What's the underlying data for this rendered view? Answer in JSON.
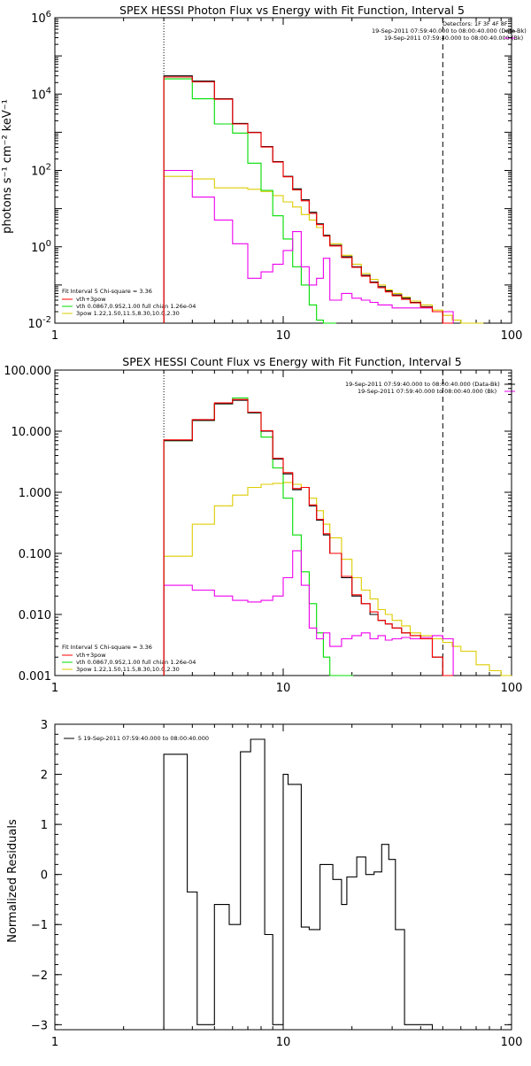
{
  "chart_data": [
    {
      "type": "line",
      "title": "SPEX HESSI Photon Flux vs Energy with Fit Function, Interval 5",
      "ylabel": "photons s⁻¹ cm⁻² keV⁻¹",
      "xlabel": "",
      "x_scale": "log",
      "y_scale": "log",
      "xlim": [
        1,
        100
      ],
      "ylim": [
        0.01,
        1000000
      ],
      "x_ticks": [
        "1",
        "10",
        "100"
      ],
      "y_ticks": [
        {
          "base": "10",
          "exp": "-2"
        },
        {
          "base": "10",
          "exp": "0"
        },
        {
          "base": "10",
          "exp": "2"
        },
        {
          "base": "10",
          "exp": "4"
        },
        {
          "base": "10",
          "exp": "6"
        }
      ],
      "vlines": [
        {
          "x": 3,
          "style": "dotted"
        },
        {
          "x": 50,
          "style": "dashed"
        }
      ],
      "legend_topright": [
        "Detectors: 1F 3F 4F 8F",
        "19-Sep-2011 07:59:40.000 to 08:00:40.000 (Data-Bk)",
        "19-Sep-2011 07:59:40.000 to 08:00:40.000 (Bk)"
      ],
      "legend_bottomleft": [
        "Fit Interval 5   Chi-square = 3.36",
        "vth+3pow",
        "vth 0.0867,0.952,1.00  full chian 1.26e-04",
        "3pow 1.22,1.50,11.5,8.30,10.0,2.30"
      ],
      "series": [
        {
          "name": "Data-Bk",
          "color": "#000000",
          "x": [
            3,
            4,
            5,
            6,
            7,
            8,
            9,
            10,
            11,
            12,
            13,
            14,
            15,
            16,
            18,
            20,
            22,
            24,
            26,
            28,
            30,
            33,
            36,
            40,
            45,
            50
          ],
          "y": [
            30000,
            22000,
            7500,
            1700,
            1000,
            420,
            170,
            70,
            33,
            17,
            8,
            4,
            2,
            1.1,
            0.55,
            0.3,
            0.18,
            0.12,
            0.09,
            0.07,
            0.055,
            0.045,
            0.035,
            0.027,
            0.02,
            0.01
          ]
        },
        {
          "name": "vth+3pow",
          "color": "#ff0000",
          "x": [
            3,
            4,
            5,
            6,
            7,
            8,
            9,
            10,
            11,
            12,
            13,
            14,
            15,
            16,
            18,
            20,
            22,
            24,
            26,
            28,
            30,
            33,
            36,
            40,
            45,
            50
          ],
          "y": [
            28000,
            21000,
            7300,
            1650,
            980,
            410,
            165,
            68,
            31,
            16,
            7.5,
            3.8,
            1.9,
            1.05,
            0.52,
            0.29,
            0.17,
            0.115,
            0.085,
            0.066,
            0.052,
            0.042,
            0.034,
            0.026,
            0.02,
            0.01
          ]
        },
        {
          "name": "vth",
          "color": "#00dd00",
          "x": [
            3,
            4,
            5,
            6,
            7,
            8,
            9,
            10,
            11,
            12,
            13,
            14,
            15,
            16
          ],
          "y": [
            25000,
            7500,
            1650,
            950,
            155,
            30,
            6.5,
            1.6,
            0.3,
            0.1,
            0.03,
            0.012,
            0.004,
            0.004
          ]
        },
        {
          "name": "3pow",
          "color": "#ddcc00",
          "x": [
            3,
            4,
            5,
            6,
            7,
            8,
            9,
            10,
            11,
            12,
            13,
            14,
            15,
            16,
            18,
            20,
            22,
            24,
            26,
            28,
            30,
            33,
            36,
            40,
            45,
            50,
            55,
            60,
            65,
            70
          ],
          "y": [
            70,
            60,
            35,
            35,
            32,
            28,
            22,
            15,
            11,
            7,
            5,
            3.2,
            2,
            1.2,
            0.6,
            0.35,
            0.2,
            0.14,
            0.1,
            0.075,
            0.06,
            0.048,
            0.038,
            0.03,
            0.022,
            0.016,
            0.012,
            0.01,
            0.01,
            0.01
          ]
        },
        {
          "name": "Bk",
          "color": "#ee00ee",
          "x": [
            3,
            4,
            5,
            6,
            7,
            8,
            9,
            10,
            11,
            12,
            13,
            14,
            15,
            16,
            18,
            20,
            22,
            24,
            26,
            28,
            30,
            33,
            36,
            40,
            45,
            50
          ],
          "y": [
            100,
            20,
            5,
            1.2,
            0.15,
            0.22,
            0.35,
            0.8,
            2.5,
            0.3,
            0.1,
            0.15,
            0.5,
            0.04,
            0.06,
            0.045,
            0.04,
            0.035,
            0.03,
            0.03,
            0.025,
            0.025,
            0.025,
            0.025,
            0.02,
            0.02
          ]
        }
      ]
    },
    {
      "type": "line",
      "title": "SPEX HESSI Count Flux vs Energy with Fit Function, Interval 5",
      "ylabel": "",
      "xlabel": "",
      "x_scale": "log",
      "y_scale": "log",
      "xlim": [
        1,
        100
      ],
      "ylim": [
        0.001,
        100
      ],
      "x_ticks": [
        "1",
        "10",
        "100"
      ],
      "y_ticks": [
        "0.001",
        "0.010",
        "0.100",
        "1.000",
        "10.000",
        "100.000"
      ],
      "vlines": [
        {
          "x": 3,
          "style": "dotted"
        },
        {
          "x": 50,
          "style": "dashed"
        }
      ],
      "legend_topright": [
        "19-Sep-2011 07:59:40.000 to 08:00:40.000 (Data-Bk)",
        "19-Sep-2011 07:59:40.000 to 08:00:40.000 (Bk)"
      ],
      "legend_bottomleft": [
        "Fit Interval 5   Chi-square = 3.36",
        "vth+3pow",
        "vth 0.0867,0.952,1.00  full chian 1.26e-04",
        "3pow 1.22,1.50,11.5,8.30,10.0,2.30"
      ],
      "series": [
        {
          "name": "Data-Bk",
          "color": "#000000",
          "x": [
            3,
            4,
            5,
            6,
            7,
            8,
            9,
            10,
            11,
            12,
            13,
            14,
            15,
            16,
            18,
            20,
            22,
            24,
            26,
            28,
            30,
            33,
            36,
            40,
            45,
            50
          ],
          "y": [
            7,
            15,
            28,
            32,
            20,
            10,
            3.5,
            2,
            1.1,
            1.2,
            0.6,
            0.35,
            0.2,
            0.1,
            0.04,
            0.02,
            0.015,
            0.01,
            0.008,
            0.007,
            0.006,
            0.005,
            0.0045,
            0.004,
            0.002,
            0.001
          ]
        },
        {
          "name": "vth+3pow",
          "color": "#ff0000",
          "x": [
            3,
            4,
            5,
            6,
            7,
            8,
            9,
            10,
            11,
            12,
            13,
            14,
            15,
            16,
            18,
            20,
            22,
            24,
            26,
            28,
            30,
            33,
            36,
            40,
            45,
            50
          ],
          "y": [
            7.2,
            15.5,
            29,
            33,
            20.5,
            10.2,
            3.6,
            2.1,
            1.15,
            1.2,
            0.62,
            0.36,
            0.21,
            0.1,
            0.042,
            0.021,
            0.015,
            0.011,
            0.008,
            0.007,
            0.006,
            0.005,
            0.0045,
            0.004,
            0.002,
            0.001
          ]
        },
        {
          "name": "vth",
          "color": "#00dd00",
          "x": [
            3,
            4,
            5,
            6,
            7,
            8,
            9,
            10,
            11,
            12,
            13,
            14,
            15,
            16,
            18
          ],
          "y": [
            7,
            15,
            28,
            35,
            20,
            8,
            2.5,
            0.8,
            0.2,
            0.05,
            0.015,
            0.005,
            0.002,
            0.001,
            0.001
          ]
        },
        {
          "name": "3pow",
          "color": "#ddcc00",
          "x": [
            3,
            4,
            5,
            6,
            7,
            8,
            9,
            10,
            11,
            12,
            13,
            14,
            15,
            16,
            18,
            20,
            22,
            24,
            26,
            28,
            30,
            33,
            36,
            40,
            45,
            50,
            55,
            60,
            70,
            80,
            90
          ],
          "y": [
            0.09,
            0.3,
            0.6,
            0.9,
            1.2,
            1.35,
            1.4,
            1.45,
            1.35,
            1.2,
            0.8,
            0.5,
            0.3,
            0.18,
            0.08,
            0.04,
            0.025,
            0.018,
            0.012,
            0.01,
            0.008,
            0.0065,
            0.005,
            0.0045,
            0.004,
            0.0035,
            0.003,
            0.0025,
            0.0015,
            0.0012,
            0.001
          ]
        },
        {
          "name": "Bk",
          "color": "#ee00ee",
          "x": [
            3,
            4,
            5,
            6,
            7,
            8,
            9,
            10,
            11,
            12,
            13,
            14,
            15,
            16,
            18,
            20,
            22,
            24,
            26,
            28,
            30,
            33,
            36,
            40,
            45,
            50
          ],
          "y": [
            0.03,
            0.025,
            0.02,
            0.017,
            0.016,
            0.017,
            0.02,
            0.04,
            0.11,
            0.03,
            0.006,
            0.004,
            0.005,
            0.003,
            0.004,
            0.0045,
            0.005,
            0.004,
            0.0045,
            0.0038,
            0.004,
            0.0042,
            0.004,
            0.0042,
            0.0045,
            0.004
          ]
        }
      ]
    },
    {
      "type": "line",
      "title": "",
      "ylabel": "Normalized Residuals",
      "xlabel": "",
      "x_scale": "log",
      "y_scale": "linear",
      "xlim": [
        1,
        100
      ],
      "ylim": [
        -3.1,
        3
      ],
      "x_ticks": [
        "1",
        "10",
        "100"
      ],
      "y_ticks": [
        "-3",
        "-2",
        "-1",
        "0",
        "1",
        "2",
        "3"
      ],
      "legend_topleft": [
        "5  19-Sep-2011 07:59:40.000 to 08:00:40.000"
      ],
      "series": [
        {
          "name": "5  19-Sep-2011 07:59:40.000 to 08:00:40.000",
          "color": "#000000",
          "edges": [
            3,
            3.8,
            4.2,
            5,
            5.8,
            6.5,
            7.2,
            8.3,
            9,
            10,
            10.5,
            12,
            13,
            14.5,
            15,
            16.5,
            18,
            19,
            21,
            23,
            25,
            27,
            29,
            31,
            34,
            37,
            42,
            45
          ],
          "values": [
            2.4,
            -0.35,
            -3,
            -0.6,
            -1.0,
            2.45,
            2.7,
            -1.2,
            -3,
            2.0,
            1.8,
            -1.05,
            -1.1,
            0.2,
            0.2,
            -0.1,
            -0.6,
            -0.05,
            0.35,
            0.0,
            0.05,
            0.6,
            0.3,
            -1.1,
            -3,
            -3,
            -3
          ]
        }
      ]
    }
  ]
}
